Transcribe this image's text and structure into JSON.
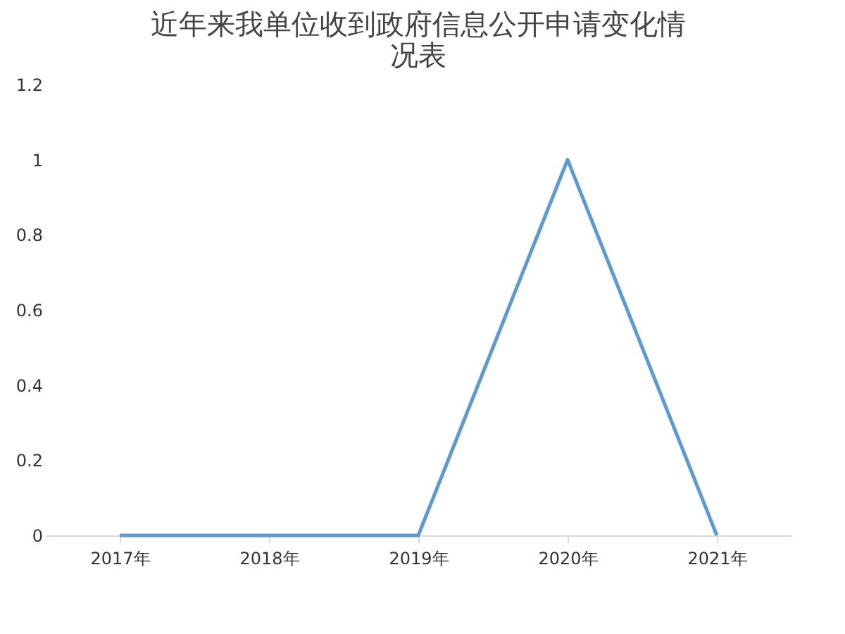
{
  "chart_data": {
    "type": "line",
    "title": "近年来我单位收到政府信息公开申请变化情况表",
    "categories": [
      "2017年",
      "2018年",
      "2019年",
      "2020年",
      "2021年"
    ],
    "series": [
      {
        "color": "#5b9bd5",
        "values": [
          0,
          0,
          0,
          1,
          0
        ]
      }
    ],
    "ylim": [
      0,
      1.2
    ],
    "yticks": [
      0,
      0.2,
      0.4,
      0.6,
      0.8,
      1,
      1.2
    ],
    "grid": false,
    "marker": "none"
  }
}
